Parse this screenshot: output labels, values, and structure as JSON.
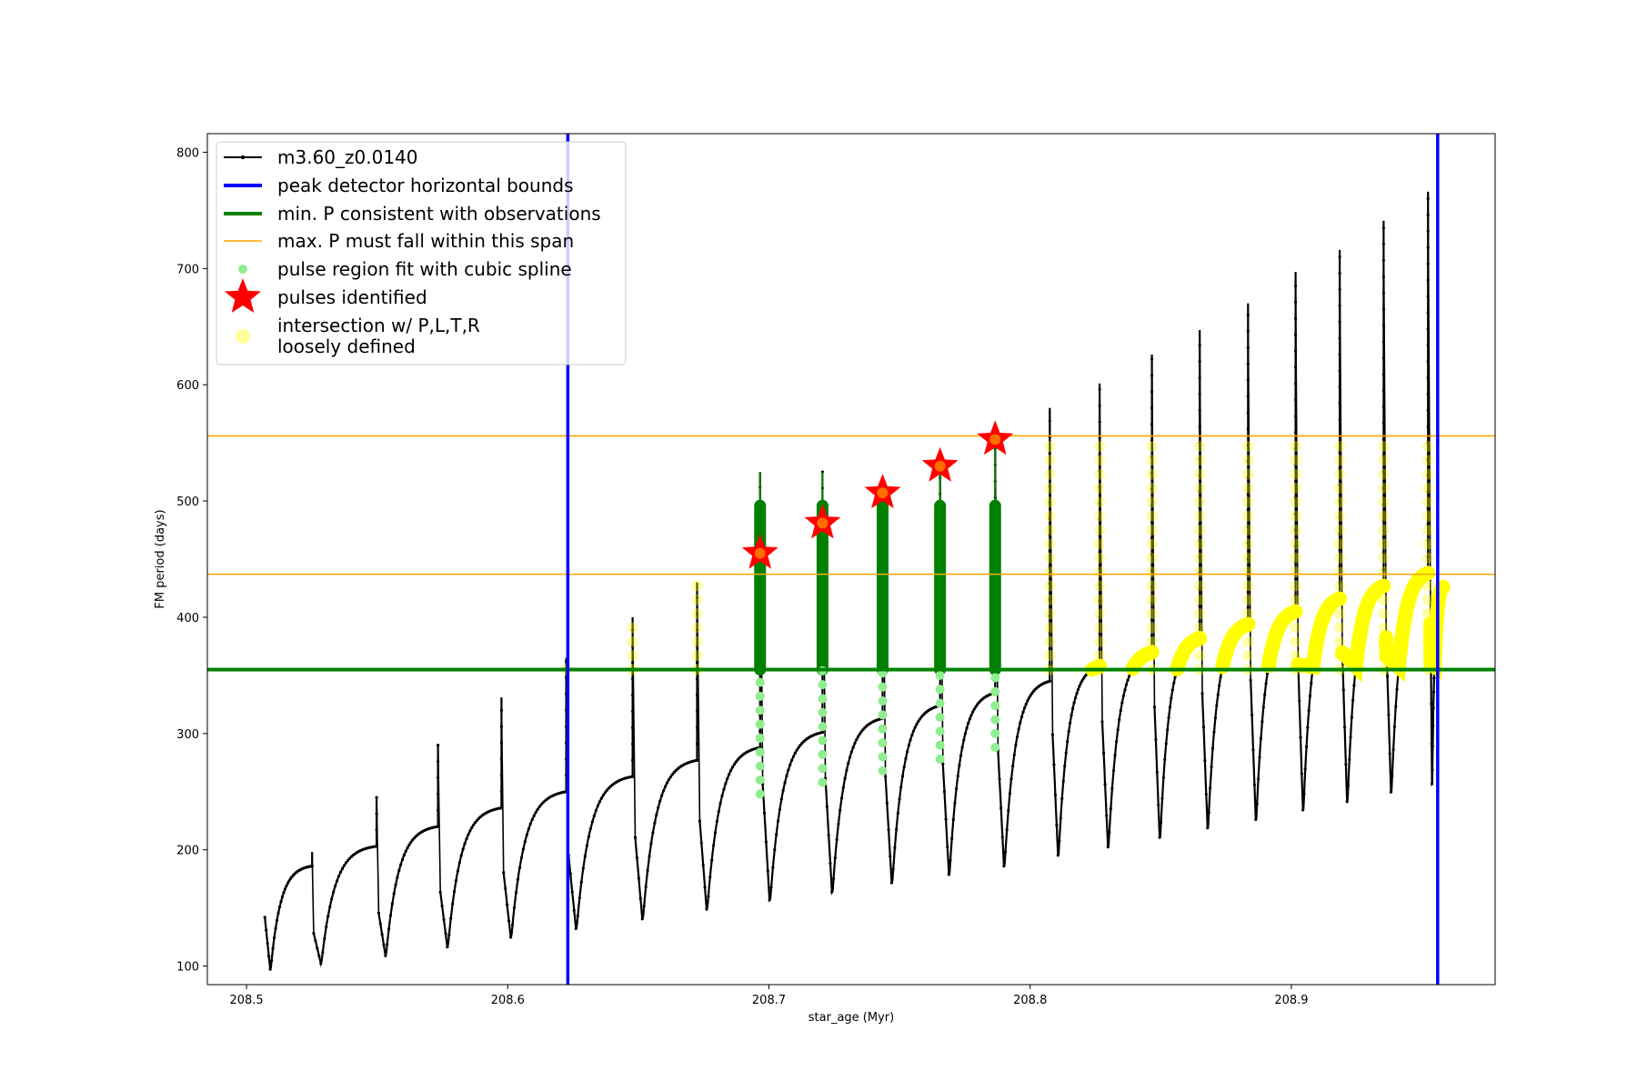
{
  "chart_data": {
    "type": "line",
    "xlabel": "star_age (Myr)",
    "ylabel": "FM period (days)",
    "xlim": [
      208.485,
      208.978
    ],
    "ylim": [
      84,
      816
    ],
    "x_ticks": [
      208.5,
      208.6,
      208.7,
      208.8,
      208.9
    ],
    "x_tick_labels": [
      "208.5",
      "208.6",
      "208.7",
      "208.8",
      "208.9"
    ],
    "y_ticks": [
      100,
      200,
      300,
      400,
      500,
      600,
      700,
      800
    ],
    "y_tick_labels": [
      "100",
      "200",
      "300",
      "400",
      "500",
      "600",
      "700",
      "800"
    ],
    "grid": false,
    "legend_position": "upper-left",
    "colors": {
      "track": "#000000",
      "bounds": "#0000ff",
      "min_p": "#008000",
      "max_p": "#ffa500",
      "spline": "#90ee90",
      "pulse": "#ff0000",
      "intersection": "#ffff00"
    },
    "legend": [
      {
        "label": "m3.60_z0.0140",
        "style": "line-dot",
        "color": "#000000"
      },
      {
        "label": "peak detector horizontal bounds",
        "style": "line",
        "color": "#0000ff"
      },
      {
        "label": "min. P consistent with observations",
        "style": "line",
        "color": "#008000"
      },
      {
        "label": "max. P must fall within this span",
        "style": "thin-line",
        "color": "#ffa500"
      },
      {
        "label": "pulse region fit with cubic spline",
        "style": "dot",
        "color": "#90ee90"
      },
      {
        "label": "pulses identified",
        "style": "star",
        "color": "#ff0000"
      },
      {
        "label": "intersection w/ P,L,T,R",
        "label2": "loosely defined",
        "style": "big-dot",
        "color": "#ffff99"
      }
    ],
    "vertical_bounds": [
      208.623,
      208.956
    ],
    "min_p": 355,
    "max_p_span": [
      437,
      556
    ],
    "pulses": [
      {
        "x0": 208.507,
        "T": 208.5251,
        "Ymin": 95,
        "Ytop": 186,
        "Spike": 198
      },
      {
        "x0": 208.5257,
        "T": 208.5498,
        "Ymin": 101,
        "Ytop": 203,
        "Spike": 245
      },
      {
        "x0": 208.5506,
        "T": 208.5733,
        "Ymin": 107,
        "Ytop": 220,
        "Spike": 291
      },
      {
        "x0": 208.5742,
        "T": 208.5976,
        "Ymin": 114,
        "Ytop": 236,
        "Spike": 331
      },
      {
        "x0": 208.5984,
        "T": 208.6224,
        "Ymin": 122,
        "Ytop": 250,
        "Spike": 365
      },
      {
        "x0": 208.6233,
        "T": 208.6478,
        "Ymin": 129,
        "Ytop": 263,
        "Spike": 400
      },
      {
        "x0": 208.6488,
        "T": 208.6725,
        "Ymin": 137,
        "Ytop": 277,
        "Spike": 430
      },
      {
        "x0": 208.6735,
        "T": 208.6966,
        "Ymin": 145,
        "Ytop": 288,
        "Spike": 525
      },
      {
        "x0": 208.6976,
        "T": 208.7205,
        "Ymin": 152,
        "Ytop": 301,
        "Spike": 525
      },
      {
        "x0": 208.7216,
        "T": 208.7435,
        "Ymin": 159,
        "Ytop": 313,
        "Spike": 510
      },
      {
        "x0": 208.7446,
        "T": 208.7655,
        "Ymin": 167,
        "Ytop": 324,
        "Spike": 530
      },
      {
        "x0": 208.7666,
        "T": 208.7866,
        "Ymin": 174,
        "Ytop": 335,
        "Spike": 555
      },
      {
        "x0": 208.7877,
        "T": 208.8075,
        "Ymin": 181,
        "Ytop": 345,
        "Spike": 580
      },
      {
        "x0": 208.8086,
        "T": 208.8266,
        "Ymin": 190,
        "Ytop": 358,
        "Spike": 601
      },
      {
        "x0": 208.8276,
        "T": 208.8466,
        "Ymin": 197,
        "Ytop": 370,
        "Spike": 626
      },
      {
        "x0": 208.8476,
        "T": 208.8649,
        "Ymin": 205,
        "Ytop": 382,
        "Spike": 647
      },
      {
        "x0": 208.8659,
        "T": 208.8834,
        "Ymin": 213,
        "Ytop": 394,
        "Spike": 670
      },
      {
        "x0": 208.8844,
        "T": 208.9016,
        "Ymin": 220,
        "Ytop": 405,
        "Spike": 697
      },
      {
        "x0": 208.9026,
        "T": 208.9185,
        "Ymin": 228,
        "Ytop": 416,
        "Spike": 716
      },
      {
        "x0": 208.9195,
        "T": 208.9353,
        "Ymin": 235,
        "Ytop": 427,
        "Spike": 741
      },
      {
        "x0": 208.9363,
        "T": 208.9523,
        "Ymin": 243,
        "Ytop": 438,
        "Spike": 766
      },
      {
        "x0": 208.9533,
        "T": 208.958,
        "Ymin": 250,
        "Ytop": 426,
        "Spike": 426
      }
    ],
    "pulses_identified": [
      {
        "x": 208.6966,
        "y": 455
      },
      {
        "x": 208.7205,
        "y": 481
      },
      {
        "x": 208.7435,
        "y": 507
      },
      {
        "x": 208.7655,
        "y": 530
      },
      {
        "x": 208.7866,
        "y": 553
      }
    ]
  }
}
